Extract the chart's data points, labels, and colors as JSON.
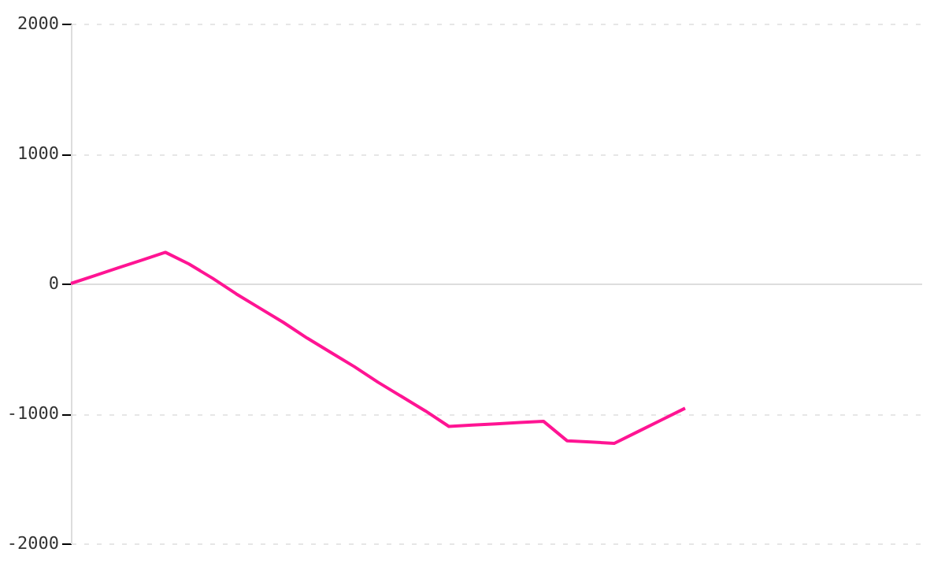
{
  "chart_data": {
    "type": "line",
    "categories": [
      null,
      null,
      null,
      null,
      null,
      null,
      null,
      null,
      null,
      null,
      null,
      null,
      null,
      null,
      null,
      null,
      null,
      null,
      null,
      null,
      null,
      null,
      null,
      null,
      null,
      null,
      null,
      null,
      null,
      null,
      null,
      null,
      null,
      null,
      null,
      null,
      null
    ],
    "series": [
      {
        "color": "#ff1493",
        "values": [
          0,
          60,
          120,
          180,
          240,
          150,
          40,
          -80,
          -190,
          -300,
          -420,
          -530,
          -640,
          -760,
          -870,
          -980,
          -1100,
          -1090,
          -1080,
          -1070,
          -1060,
          -1210,
          -1220,
          -1230,
          -1140,
          -1050,
          -960,
          null,
          null,
          null,
          null,
          null,
          null,
          null,
          null,
          null,
          null
        ]
      }
    ],
    "ylim": [
      -2000,
      2000
    ],
    "yticks": [
      -2000,
      -1000,
      0,
      1000,
      2000
    ],
    "grid": "y",
    "marker": "none",
    "line_style": "solid",
    "tick_labels": "y"
  }
}
